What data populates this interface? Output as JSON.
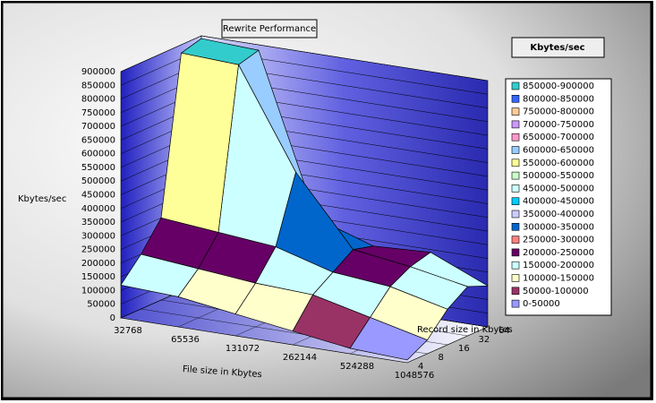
{
  "chart_data": {
    "type": "surface",
    "title": "Rewrite Performance",
    "legend_title": "Kbytes/sec",
    "zlabel": "Kbytes/sec",
    "xlabel": "File size in Kbytes",
    "ylabel": "Record size in Kbytes",
    "x": [
      32768,
      65536,
      131072,
      262144,
      524288,
      1048576
    ],
    "y": [
      4,
      8,
      16,
      32,
      64
    ],
    "values": [
      [
        120000,
        200000,
        300000,
        870000,
        890000
      ],
      [
        110000,
        180000,
        280000,
        860000,
        880000
      ],
      [
        80000,
        160000,
        260000,
        500000,
        300000
      ],
      [
        50000,
        150000,
        200000,
        250000,
        230000
      ],
      [
        20000,
        100000,
        180000,
        220000,
        240000
      ],
      [
        10000,
        50000,
        130000,
        180000,
        150000
      ]
    ],
    "zlim": [
      0,
      900000
    ],
    "zticks": [
      0,
      50000,
      100000,
      150000,
      200000,
      250000,
      300000,
      350000,
      400000,
      450000,
      500000,
      550000,
      600000,
      650000,
      700000,
      750000,
      800000,
      850000,
      900000
    ],
    "bands": [
      {
        "label": "850000-900000",
        "color": "#33cccc"
      },
      {
        "label": "800000-850000",
        "color": "#3366ff"
      },
      {
        "label": "750000-800000",
        "color": "#ffcc99"
      },
      {
        "label": "700000-750000",
        "color": "#cc99ff"
      },
      {
        "label": "650000-700000",
        "color": "#ff99cc"
      },
      {
        "label": "600000-650000",
        "color": "#99ccff"
      },
      {
        "label": "550000-600000",
        "color": "#ffff99"
      },
      {
        "label": "500000-550000",
        "color": "#ccffcc"
      },
      {
        "label": "450000-500000",
        "color": "#ccffff"
      },
      {
        "label": "400000-450000",
        "color": "#00ccff"
      },
      {
        "label": "350000-400000",
        "color": "#ccccff"
      },
      {
        "label": "300000-350000",
        "color": "#0066cc"
      },
      {
        "label": "250000-300000",
        "color": "#ff8080"
      },
      {
        "label": "200000-250000",
        "color": "#660066"
      },
      {
        "label": "150000-200000",
        "color": "#ccffff"
      },
      {
        "label": "100000-150000",
        "color": "#ffffcc"
      },
      {
        "label": "50000-100000",
        "color": "#993366"
      },
      {
        "label": "0-50000",
        "color": "#9999ff"
      }
    ]
  }
}
